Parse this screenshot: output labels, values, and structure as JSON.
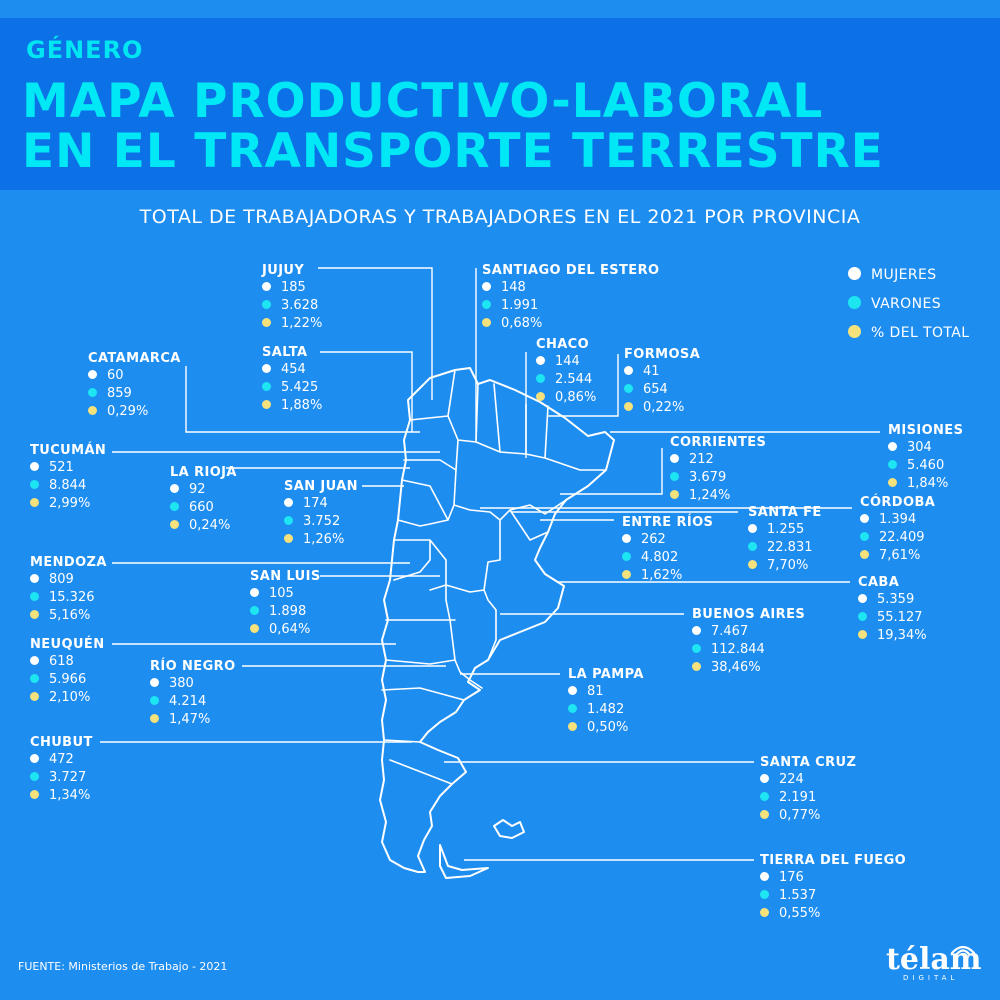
{
  "header": {
    "overline": "GÉNERO",
    "title_line1": "MAPA PRODUCTIVO-LABORAL",
    "title_line2": "EN EL TRANSPORTE TERRESTRE",
    "subtitle": "TOTAL DE TRABAJADORAS Y TRABAJADORES EN EL 2021 POR PROVINCIA"
  },
  "legend": [
    {
      "label": "MUJERES",
      "color": "#ffffff"
    },
    {
      "label": "VARONES",
      "color": "#1de6f2"
    },
    {
      "label": "% DEL TOTAL",
      "color": "#f5e27c"
    }
  ],
  "provinces": [
    {
      "name": "JUJUY",
      "mujeres": "185",
      "varones": "3.628",
      "pct": "1,22%"
    },
    {
      "name": "SANTIAGO DEL ESTERO",
      "mujeres": "148",
      "varones": "1.991",
      "pct": "0,68%"
    },
    {
      "name": "CATAMARCA",
      "mujeres": "60",
      "varones": "859",
      "pct": "0,29%"
    },
    {
      "name": "SALTA",
      "mujeres": "454",
      "varones": "5.425",
      "pct": "1,88%"
    },
    {
      "name": "CHACO",
      "mujeres": "144",
      "varones": "2.544",
      "pct": "0,86%"
    },
    {
      "name": "FORMOSA",
      "mujeres": "41",
      "varones": "654",
      "pct": "0,22%"
    },
    {
      "name": "MISIONES",
      "mujeres": "304",
      "varones": "5.460",
      "pct": "1,84%"
    },
    {
      "name": "TUCUMÁN",
      "mujeres": "521",
      "varones": "8.844",
      "pct": "2,99%"
    },
    {
      "name": "CORRIENTES",
      "mujeres": "212",
      "varones": "3.679",
      "pct": "1,24%"
    },
    {
      "name": "LA RIOJA",
      "mujeres": "92",
      "varones": "660",
      "pct": "0,24%"
    },
    {
      "name": "SAN JUAN",
      "mujeres": "174",
      "varones": "3.752",
      "pct": "1,26%"
    },
    {
      "name": "CÓRDOBA",
      "mujeres": "1.394",
      "varones": "22.409",
      "pct": "7,61%"
    },
    {
      "name": "SANTA FE",
      "mujeres": "1.255",
      "varones": "22.831",
      "pct": "7,70%"
    },
    {
      "name": "ENTRE RÍOS",
      "mujeres": "262",
      "varones": "4.802",
      "pct": "1,62%"
    },
    {
      "name": "MENDOZA",
      "mujeres": "809",
      "varones": "15.326",
      "pct": "5,16%"
    },
    {
      "name": "SAN LUIS",
      "mujeres": "105",
      "varones": "1.898",
      "pct": "0,64%"
    },
    {
      "name": "CABA",
      "mujeres": "5.359",
      "varones": "55.127",
      "pct": "19,34%"
    },
    {
      "name": "BUENOS AIRES",
      "mujeres": "7.467",
      "varones": "112.844",
      "pct": "38,46%"
    },
    {
      "name": "NEUQUÉN",
      "mujeres": "618",
      "varones": "5.966",
      "pct": "2,10%"
    },
    {
      "name": "RÍO NEGRO",
      "mujeres": "380",
      "varones": "4.214",
      "pct": "1,47%"
    },
    {
      "name": "LA PAMPA",
      "mujeres": "81",
      "varones": "1.482",
      "pct": "0,50%"
    },
    {
      "name": "CHUBUT",
      "mujeres": "472",
      "varones": "3.727",
      "pct": "1,34%"
    },
    {
      "name": "SANTA CRUZ",
      "mujeres": "224",
      "varones": "2.191",
      "pct": "0,77%"
    },
    {
      "name": "TIERRA DEL FUEGO",
      "mujeres": "176",
      "varones": "1.537",
      "pct": "0,55%"
    }
  ],
  "footer": {
    "source": "FUENTE: Ministerios de Trabajo - 2021",
    "logo": "télam",
    "logo_sub": "DIGITAL"
  }
}
